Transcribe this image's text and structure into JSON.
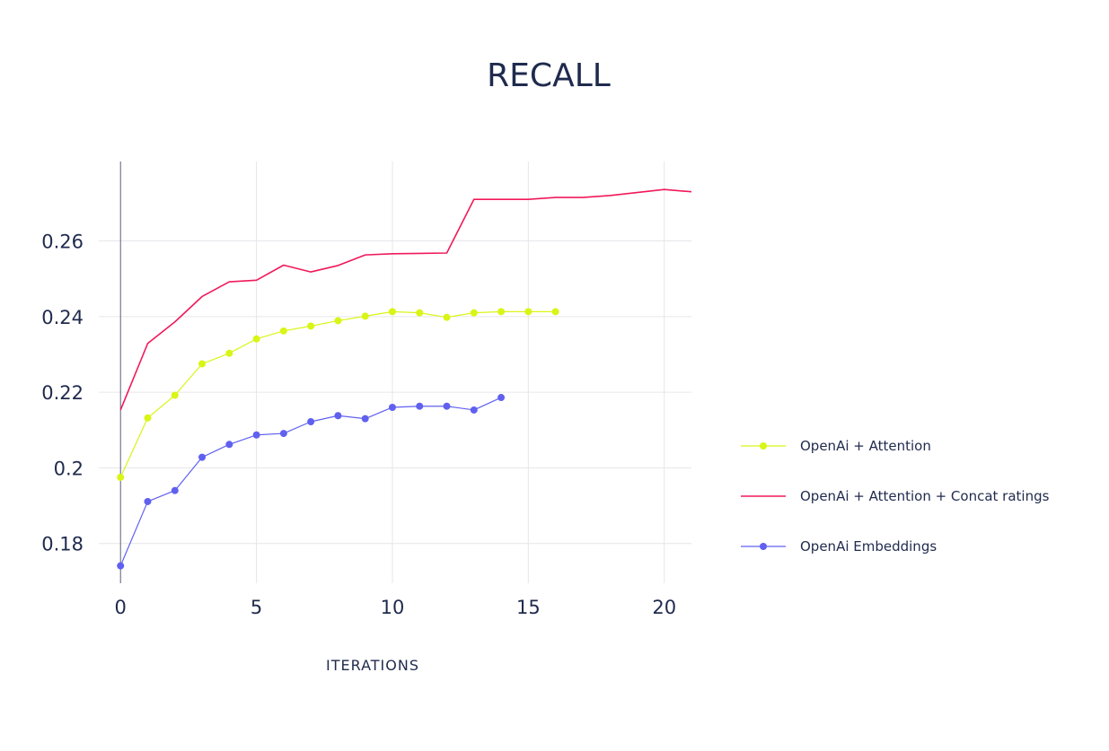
{
  "chart_data": {
    "type": "line",
    "title": "RECALL",
    "xlabel": "ITERATIONS",
    "ylabel": "",
    "xlim": [
      -0.8,
      21
    ],
    "ylim": [
      0.1695,
      0.281
    ],
    "xticks": [
      0,
      5,
      10,
      15,
      20
    ],
    "yticks": [
      0.18,
      0.2,
      0.22,
      0.24,
      0.26
    ],
    "ytick_labels": [
      "0.18",
      "0.2",
      "0.22",
      "0.24",
      "0.26"
    ],
    "grid": true,
    "legend_position": "right",
    "series": [
      {
        "name": "OpenAi + Attention",
        "color": "#d9f516",
        "markers": true,
        "x": [
          0,
          1,
          2,
          3,
          4,
          5,
          6,
          7,
          8,
          9,
          10,
          11,
          12,
          13,
          14,
          15,
          16
        ],
        "y": [
          0.1975,
          0.2132,
          0.2192,
          0.2275,
          0.2303,
          0.2341,
          0.2362,
          0.2375,
          0.2389,
          0.2401,
          0.2413,
          0.241,
          0.2398,
          0.241,
          0.2413,
          0.2413,
          0.2413
        ]
      },
      {
        "name": "OpenAi + Attention + Concat ratings",
        "color": "#f0195a",
        "markers": false,
        "x": [
          0,
          1,
          2,
          3,
          4,
          5,
          6,
          7,
          8,
          9,
          10,
          11,
          12,
          13,
          14,
          15,
          16,
          17,
          18,
          19,
          20,
          21
        ],
        "y": [
          0.2153,
          0.2329,
          0.2386,
          0.2453,
          0.2492,
          0.2496,
          0.2536,
          0.2518,
          0.2535,
          0.2563,
          0.2566,
          0.2567,
          0.2568,
          0.271,
          0.271,
          0.271,
          0.2715,
          0.2715,
          0.272,
          0.2728,
          0.2736,
          0.273
        ]
      },
      {
        "name": "OpenAi Embeddings",
        "color": "#6060f0",
        "markers": true,
        "x": [
          0,
          1,
          2,
          3,
          4,
          5,
          6,
          7,
          8,
          9,
          10,
          11,
          12,
          13,
          14
        ],
        "y": [
          0.1741,
          0.1911,
          0.194,
          0.2028,
          0.2062,
          0.2087,
          0.2091,
          0.2122,
          0.2138,
          0.213,
          0.216,
          0.2163,
          0.2163,
          0.2153,
          0.2186
        ]
      }
    ],
    "colors": {
      "text": "#1f2a4d",
      "grid": "#e6e6ea",
      "axis": "#5a6078"
    }
  }
}
